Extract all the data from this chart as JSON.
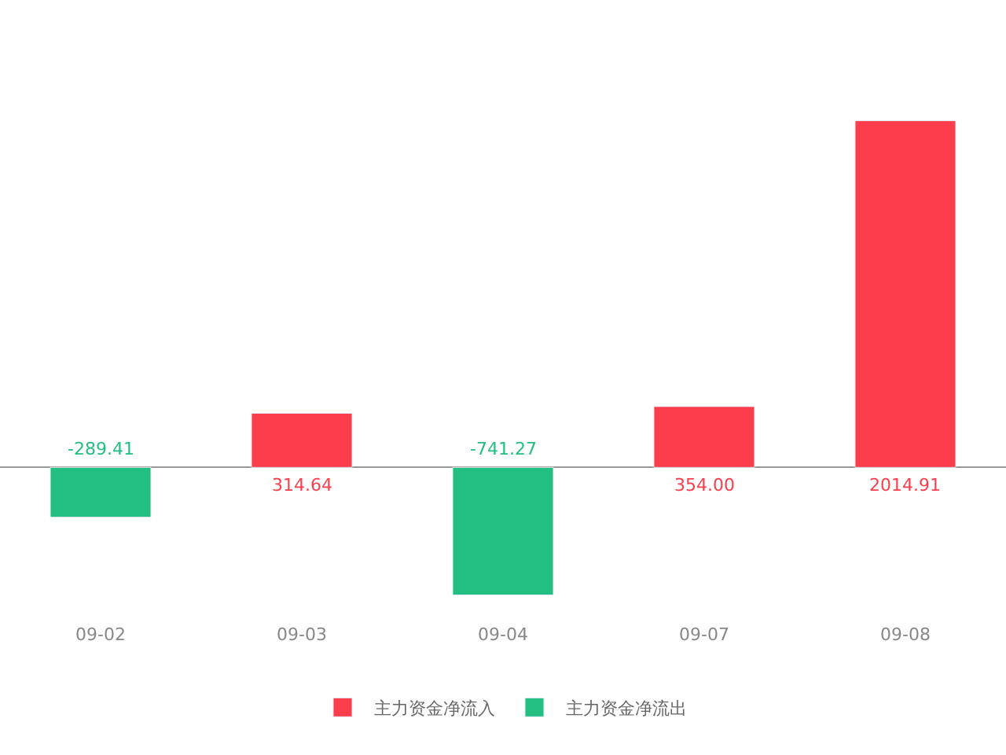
{
  "chart_data": {
    "type": "bar",
    "categories": [
      "09-02",
      "09-03",
      "09-04",
      "09-07",
      "09-08"
    ],
    "series": [
      {
        "name": "主力资金净流入",
        "color": "#fc3d4c",
        "values": [
          null,
          314.64,
          null,
          354.0,
          2014.91
        ],
        "value_labels": [
          null,
          "314.64",
          null,
          "354.00",
          "2014.91"
        ]
      },
      {
        "name": "主力资金净流出",
        "color": "#22bf80",
        "values": [
          -289.41,
          null,
          -741.27,
          null,
          null
        ],
        "value_labels": [
          "-289.41",
          null,
          "-741.27",
          null,
          null
        ]
      }
    ],
    "stacked": true,
    "legend": "bottom"
  }
}
